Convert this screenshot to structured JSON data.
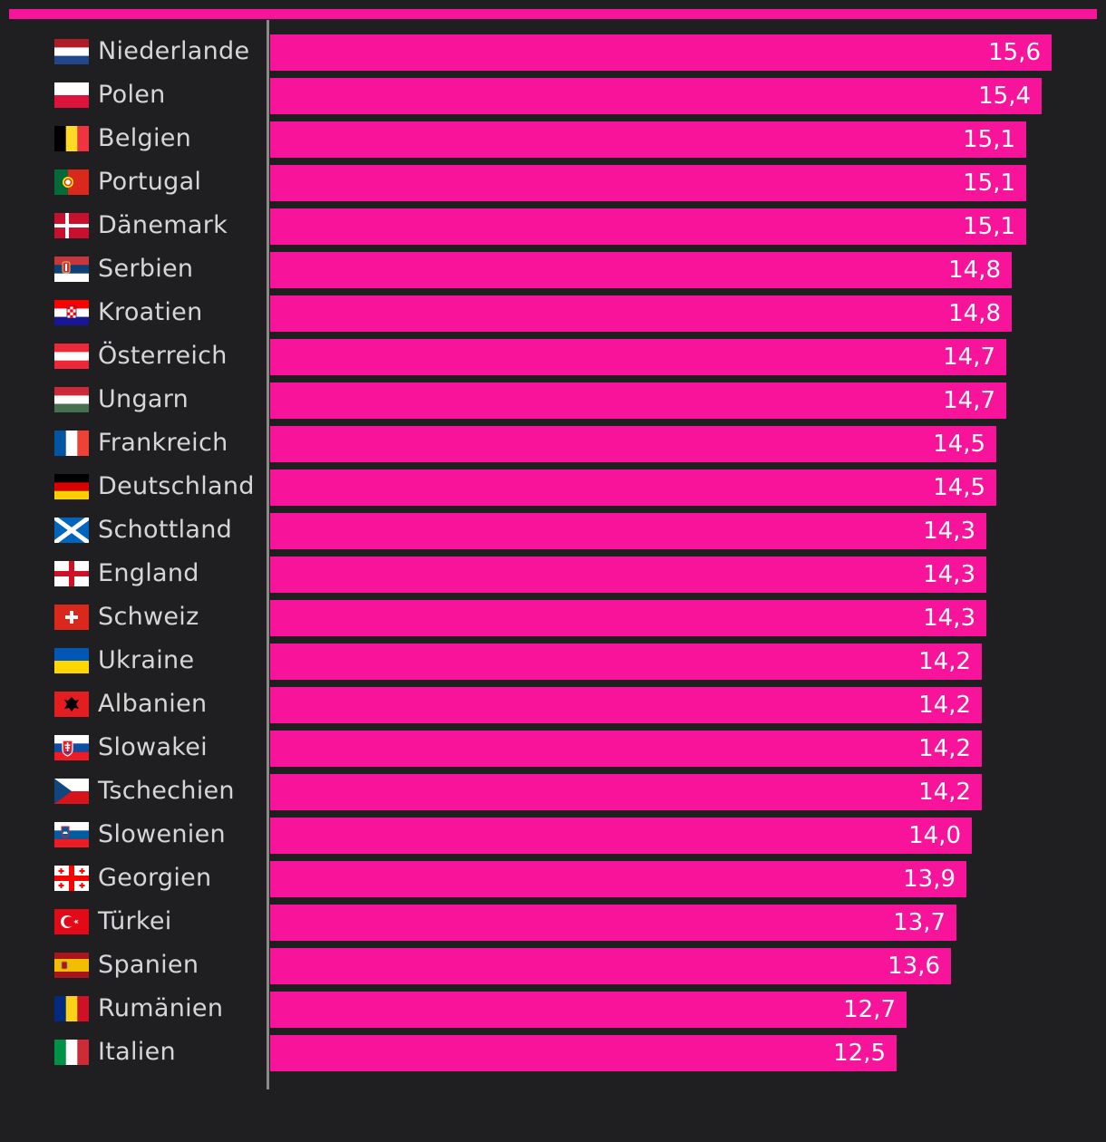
{
  "colors": {
    "background": "#1f1f21",
    "bar": "#f7149b",
    "label_text": "#d6d6d6",
    "value_text": "#ffffff",
    "axis": "#8a8a8a"
  },
  "chart_data": {
    "type": "bar",
    "orientation": "horizontal",
    "title": "",
    "xlabel": "",
    "ylabel": "",
    "xlim": [
      0,
      15.6
    ],
    "grid": false,
    "legend": "none",
    "categories": [
      "Niederlande",
      "Polen",
      "Belgien",
      "Portugal",
      "Dänemark",
      "Serbien",
      "Kroatien",
      "Österreich",
      "Ungarn",
      "Frankreich",
      "Deutschland",
      "Schottland",
      "England",
      "Schweiz",
      "Ukraine",
      "Albanien",
      "Slowakei",
      "Tschechien",
      "Slowenien",
      "Georgien",
      "Türkei",
      "Spanien",
      "Rumänien",
      "Italien"
    ],
    "values": [
      15.6,
      15.4,
      15.1,
      15.1,
      15.1,
      14.8,
      14.8,
      14.7,
      14.7,
      14.5,
      14.5,
      14.3,
      14.3,
      14.3,
      14.2,
      14.2,
      14.2,
      14.2,
      14.0,
      13.9,
      13.7,
      13.6,
      12.7,
      12.5
    ],
    "value_labels": [
      "15,6",
      "15,4",
      "15,1",
      "15,1",
      "15,1",
      "14,8",
      "14,8",
      "14,7",
      "14,7",
      "14,5",
      "14,5",
      "14,3",
      "14,3",
      "14,3",
      "14,2",
      "14,2",
      "14,2",
      "14,2",
      "14,0",
      "13,9",
      "13,7",
      "13,6",
      "12,7",
      "12,5"
    ],
    "flag_icons": [
      "netherlands-flag-icon",
      "poland-flag-icon",
      "belgium-flag-icon",
      "portugal-flag-icon",
      "denmark-flag-icon",
      "serbia-flag-icon",
      "croatia-flag-icon",
      "austria-flag-icon",
      "hungary-flag-icon",
      "france-flag-icon",
      "germany-flag-icon",
      "scotland-flag-icon",
      "england-flag-icon",
      "switzerland-flag-icon",
      "ukraine-flag-icon",
      "albania-flag-icon",
      "slovakia-flag-icon",
      "czechia-flag-icon",
      "slovenia-flag-icon",
      "georgia-flag-icon",
      "turkey-flag-icon",
      "spain-flag-icon",
      "romania-flag-icon",
      "italy-flag-icon"
    ]
  }
}
